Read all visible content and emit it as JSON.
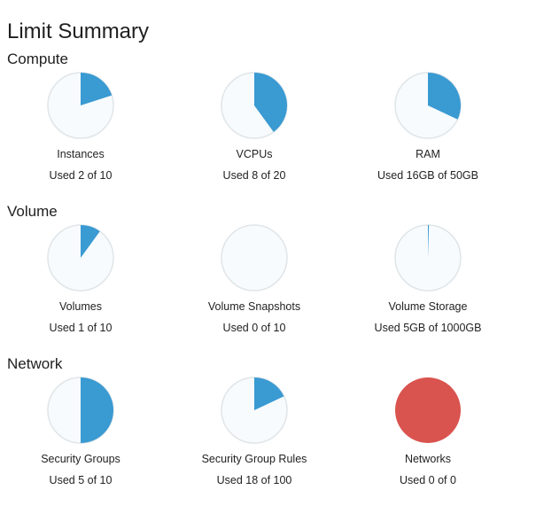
{
  "page": {
    "title": "Limit Summary"
  },
  "colors": {
    "used": "#3a9ad2",
    "free": "#f7fbfd",
    "ring": "#dfe5e8",
    "full": "#d9534f"
  },
  "sections": [
    {
      "title": "Compute",
      "items": [
        {
          "name": "Instances",
          "usage": "Used 2 of 10",
          "used": 2,
          "limit": 10
        },
        {
          "name": "VCPUs",
          "usage": "Used 8 of 20",
          "used": 8,
          "limit": 20
        },
        {
          "name": "RAM",
          "usage": "Used 16GB of 50GB",
          "used": 16,
          "limit": 50
        }
      ]
    },
    {
      "title": "Volume",
      "items": [
        {
          "name": "Volumes",
          "usage": "Used 1 of 10",
          "used": 1,
          "limit": 10
        },
        {
          "name": "Volume Snapshots",
          "usage": "Used 0 of 10",
          "used": 0,
          "limit": 10
        },
        {
          "name": "Volume Storage",
          "usage": "Used 5GB of 1000GB",
          "used": 5,
          "limit": 1000
        }
      ]
    },
    {
      "title": "Network",
      "items": [
        {
          "name": "Security Groups",
          "usage": "Used 5 of 10",
          "used": 5,
          "limit": 10
        },
        {
          "name": "Security Group Rules",
          "usage": "Used 18 of 100",
          "used": 18,
          "limit": 100
        },
        {
          "name": "Networks",
          "usage": "Used 0 of 0",
          "used": 0,
          "limit": 0
        }
      ]
    }
  ]
}
